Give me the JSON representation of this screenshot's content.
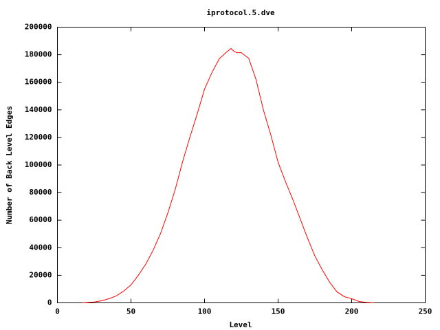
{
  "chart_data": {
    "type": "line",
    "title": "iprotocol.5.dve",
    "x_label": "Level",
    "y_label": "Number of Back Level Edges",
    "x": [
      17,
      20,
      25,
      30,
      35,
      40,
      45,
      50,
      55,
      60,
      65,
      70,
      75,
      80,
      85,
      90,
      95,
      100,
      105,
      110,
      115,
      118,
      120,
      122,
      125,
      128,
      130,
      135,
      140,
      145,
      150,
      155,
      160,
      165,
      170,
      175,
      180,
      185,
      190,
      195,
      200,
      205,
      210,
      215
    ],
    "series": [
      {
        "name": "iprotocol.5.dve",
        "color": "#ff0000",
        "values": [
          0,
          200,
          600,
          1500,
          3000,
          5000,
          8500,
          13000,
          20000,
          28000,
          38000,
          50000,
          65000,
          82000,
          102000,
          120000,
          137000,
          155000,
          167000,
          177000,
          182000,
          184500,
          182500,
          181500,
          181500,
          179000,
          177500,
          162000,
          140000,
          122000,
          102000,
          88000,
          75000,
          61000,
          47000,
          34000,
          24000,
          15000,
          8000,
          4500,
          3000,
          1000,
          300,
          0
        ]
      }
    ],
    "xlim": [
      0,
      250
    ],
    "xticks": [
      0,
      50,
      100,
      150,
      200,
      250
    ],
    "ylim": [
      0,
      200000
    ],
    "yticks": [
      0,
      20000,
      40000,
      60000,
      80000,
      100000,
      120000,
      140000,
      160000,
      180000,
      200000
    ]
  }
}
